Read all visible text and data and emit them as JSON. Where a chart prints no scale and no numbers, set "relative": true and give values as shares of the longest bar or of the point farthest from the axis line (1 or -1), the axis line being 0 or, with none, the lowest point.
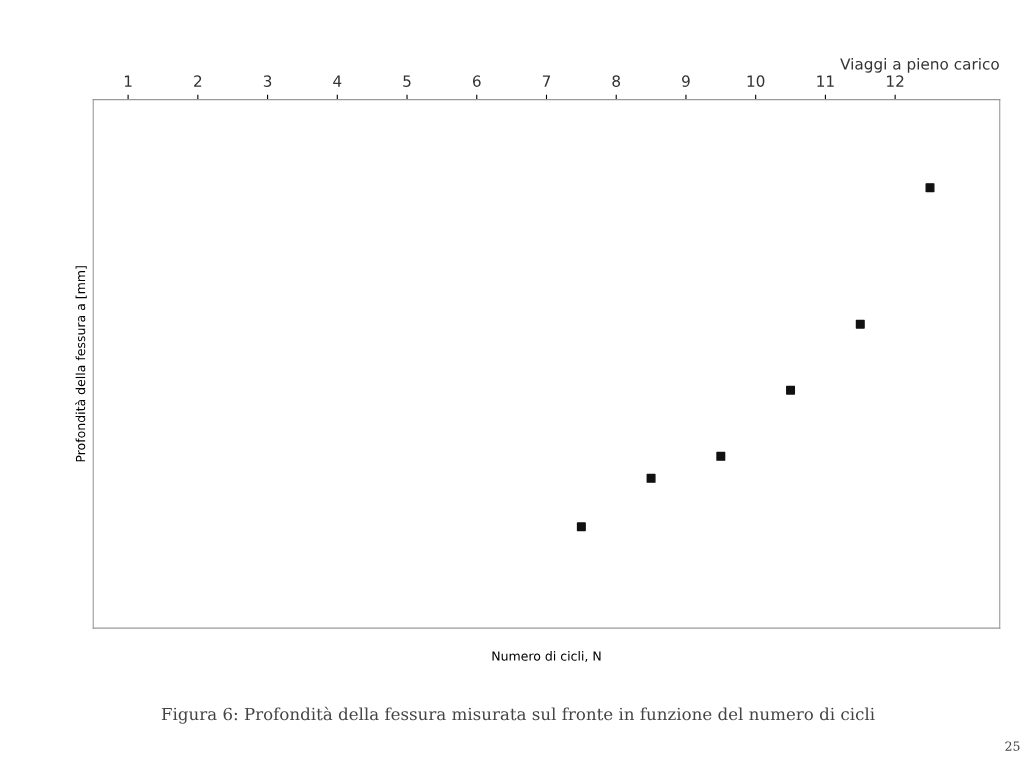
{
  "chart_data": {
    "type": "scatter",
    "relative": true,
    "xlabel": "Viaggi a pieno carico",
    "x2label": "Numero di cicli, N",
    "ylabel": "Profondità della fessura a [mm]",
    "x": [
      7.5,
      8.5,
      9.5,
      10.5,
      11.5,
      12.5
    ],
    "series": [
      {
        "color": "#111111",
        "values": [
          0.23,
          0.34,
          0.39,
          0.54,
          0.69,
          1.0
        ]
      }
    ],
    "marker": "square",
    "xlim": [
      0.5,
      13.5
    ],
    "xticks": [
      1,
      2,
      3,
      4,
      5,
      6,
      7,
      8,
      9,
      10,
      11,
      12
    ],
    "annotations": [
      "Figura 6: Profondità della fessura misurata sul fronte in funzione del numero di cicli",
      "25"
    ]
  }
}
